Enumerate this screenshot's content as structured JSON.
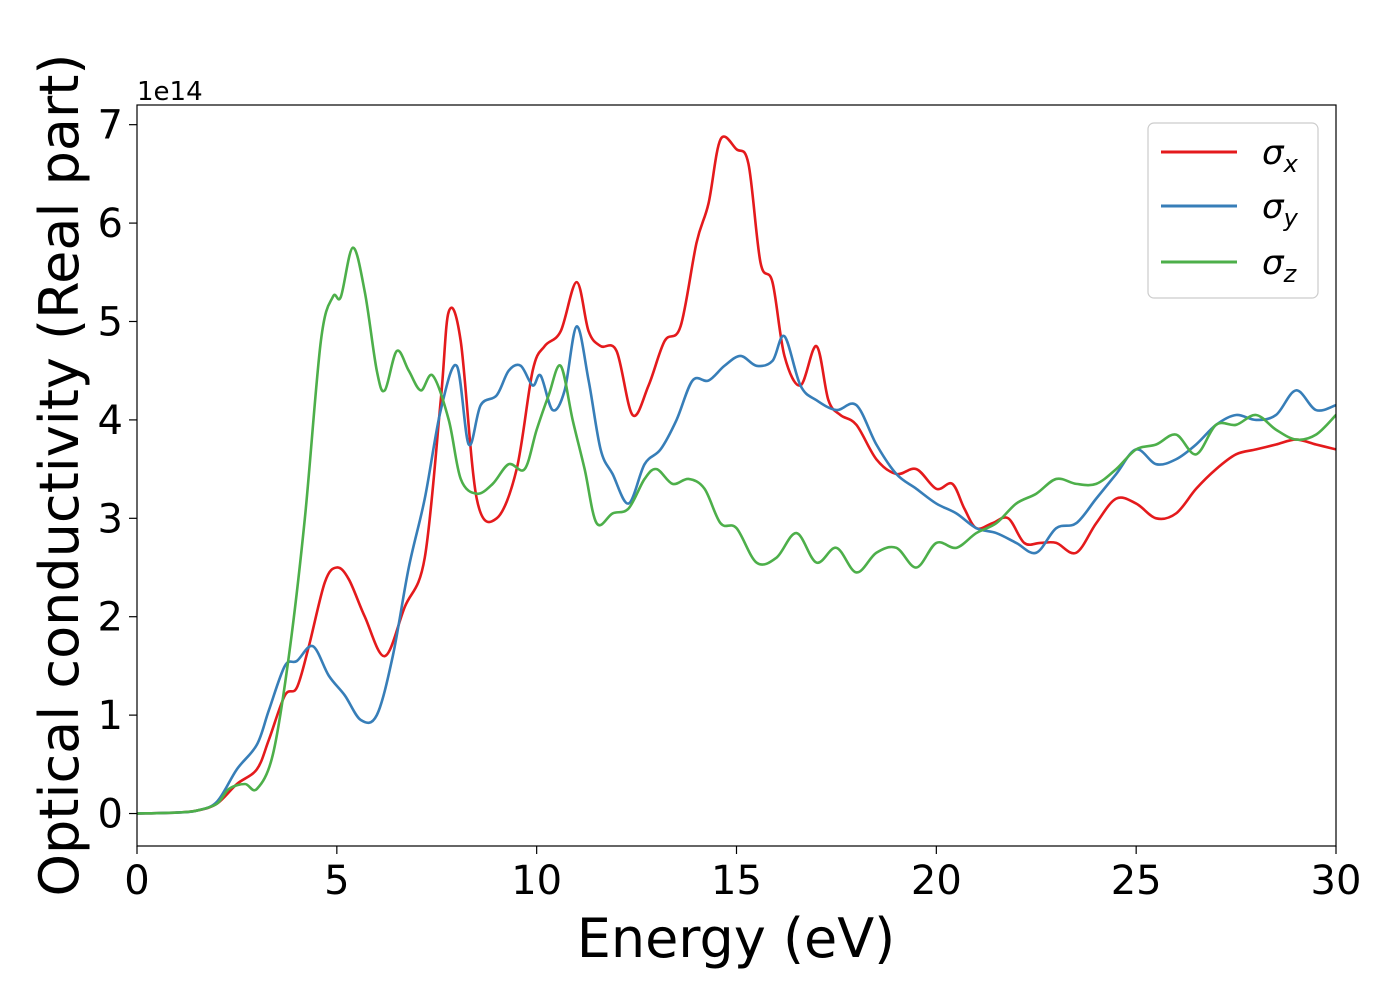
{
  "chart_data": {
    "type": "line",
    "xlabel": "Energy (eV)",
    "ylabel": "Optical conductivity (Real part)",
    "y_offset_label": "1e14",
    "y_scale": 100000000000000.0,
    "xlim": [
      0,
      30
    ],
    "ylim": [
      -0.33,
      7.2
    ],
    "xticks": [
      0,
      5,
      10,
      15,
      20,
      25,
      30
    ],
    "yticks": [
      0,
      1,
      2,
      3,
      4,
      5,
      6,
      7
    ],
    "grid": false,
    "legend_position": "top-right",
    "series": [
      {
        "name": "σx",
        "legend_symbol": "σ",
        "legend_subscript": "x",
        "color": "#e41a1c",
        "x": [
          0,
          1,
          1.5,
          2.0,
          2.5,
          3.0,
          3.3,
          3.7,
          4.0,
          4.3,
          4.7,
          5.0,
          5.3,
          5.7,
          6.2,
          6.7,
          7.2,
          7.6,
          7.8,
          8.1,
          8.5,
          9.0,
          9.5,
          9.9,
          10.2,
          10.6,
          11.0,
          11.3,
          11.6,
          12.0,
          12.4,
          12.8,
          13.2,
          13.6,
          14.0,
          14.3,
          14.6,
          15.0,
          15.3,
          15.6,
          15.9,
          16.2,
          16.6,
          17.0,
          17.3,
          17.6,
          18.0,
          18.5,
          19.0,
          19.5,
          20.0,
          20.4,
          20.7,
          21.0,
          21.4,
          21.8,
          22.2,
          22.6,
          23.0,
          23.5,
          24.0,
          24.5,
          25.0,
          25.5,
          26.0,
          26.5,
          27.0,
          27.5,
          28.0,
          28.5,
          29.0,
          29.5,
          30.0
        ],
        "y": [
          0,
          0.01,
          0.03,
          0.1,
          0.3,
          0.45,
          0.75,
          1.2,
          1.28,
          1.7,
          2.35,
          2.5,
          2.38,
          2.0,
          1.6,
          2.1,
          2.6,
          4.2,
          5.1,
          4.8,
          3.2,
          3.0,
          3.5,
          4.5,
          4.75,
          4.9,
          5.4,
          4.9,
          4.75,
          4.7,
          4.05,
          4.35,
          4.8,
          4.95,
          5.8,
          6.2,
          6.85,
          6.75,
          6.6,
          5.6,
          5.4,
          4.65,
          4.35,
          4.75,
          4.2,
          4.05,
          3.95,
          3.6,
          3.45,
          3.5,
          3.3,
          3.35,
          3.1,
          2.9,
          2.95,
          3.0,
          2.75,
          2.75,
          2.75,
          2.65,
          2.95,
          3.2,
          3.15,
          3.0,
          3.05,
          3.3,
          3.5,
          3.65,
          3.7,
          3.75,
          3.8,
          3.75,
          3.7
        ]
      },
      {
        "name": "σy",
        "legend_symbol": "σ",
        "legend_subscript": "y",
        "color": "#377eb8",
        "x": [
          0,
          1,
          1.5,
          2.0,
          2.5,
          3.0,
          3.3,
          3.7,
          4.0,
          4.4,
          4.8,
          5.2,
          5.6,
          6.0,
          6.4,
          6.8,
          7.2,
          7.6,
          8.0,
          8.3,
          8.6,
          9.0,
          9.3,
          9.6,
          9.9,
          10.1,
          10.4,
          10.7,
          11.0,
          11.3,
          11.6,
          11.9,
          12.3,
          12.7,
          13.1,
          13.5,
          13.9,
          14.3,
          14.7,
          15.1,
          15.5,
          15.9,
          16.2,
          16.6,
          17.0,
          17.5,
          18.0,
          18.5,
          19.0,
          19.5,
          20.0,
          20.5,
          21.0,
          21.5,
          22.0,
          22.5,
          23.0,
          23.5,
          24.0,
          24.5,
          25.0,
          25.5,
          26.0,
          26.5,
          27.0,
          27.5,
          28.0,
          28.5,
          29.0,
          29.5,
          30.0
        ],
        "y": [
          0,
          0.01,
          0.03,
          0.12,
          0.45,
          0.7,
          1.05,
          1.5,
          1.55,
          1.7,
          1.4,
          1.2,
          0.95,
          1.0,
          1.6,
          2.5,
          3.2,
          4.1,
          4.55,
          3.75,
          4.15,
          4.25,
          4.5,
          4.55,
          4.35,
          4.45,
          4.1,
          4.3,
          4.95,
          4.4,
          3.7,
          3.45,
          3.15,
          3.55,
          3.7,
          4.0,
          4.4,
          4.4,
          4.55,
          4.65,
          4.55,
          4.6,
          4.85,
          4.35,
          4.2,
          4.1,
          4.15,
          3.75,
          3.45,
          3.3,
          3.15,
          3.05,
          2.9,
          2.85,
          2.75,
          2.65,
          2.9,
          2.95,
          3.2,
          3.45,
          3.7,
          3.55,
          3.6,
          3.75,
          3.95,
          4.05,
          4.0,
          4.05,
          4.3,
          4.1,
          4.15
        ]
      },
      {
        "name": "σz",
        "legend_symbol": "σ",
        "legend_subscript": "z",
        "color": "#4daf4a",
        "x": [
          0,
          1,
          1.5,
          2.0,
          2.3,
          2.7,
          3.0,
          3.4,
          3.8,
          4.2,
          4.6,
          4.9,
          5.1,
          5.4,
          5.7,
          6.0,
          6.2,
          6.5,
          6.8,
          7.1,
          7.4,
          7.8,
          8.1,
          8.5,
          8.9,
          9.3,
          9.7,
          10.0,
          10.3,
          10.6,
          10.9,
          11.2,
          11.5,
          11.9,
          12.3,
          12.7,
          13.0,
          13.4,
          13.8,
          14.2,
          14.6,
          15.0,
          15.5,
          16.0,
          16.5,
          17.0,
          17.5,
          18.0,
          18.5,
          19.0,
          19.5,
          20.0,
          20.5,
          21.0,
          21.5,
          22.0,
          22.5,
          23.0,
          23.5,
          24.0,
          24.5,
          25.0,
          25.5,
          26.0,
          26.5,
          27.0,
          27.5,
          28.0,
          28.5,
          29.0,
          29.5,
          30.0
        ],
        "y": [
          0,
          0.01,
          0.03,
          0.1,
          0.25,
          0.3,
          0.25,
          0.6,
          1.6,
          3.0,
          4.8,
          5.25,
          5.25,
          5.75,
          5.3,
          4.5,
          4.3,
          4.7,
          4.5,
          4.3,
          4.45,
          4.0,
          3.4,
          3.25,
          3.35,
          3.55,
          3.5,
          3.9,
          4.25,
          4.55,
          4.0,
          3.5,
          2.95,
          3.05,
          3.1,
          3.4,
          3.5,
          3.35,
          3.4,
          3.3,
          2.95,
          2.9,
          2.55,
          2.6,
          2.85,
          2.55,
          2.7,
          2.45,
          2.65,
          2.7,
          2.5,
          2.75,
          2.7,
          2.85,
          2.95,
          3.15,
          3.25,
          3.4,
          3.35,
          3.35,
          3.5,
          3.7,
          3.75,
          3.85,
          3.65,
          3.95,
          3.95,
          4.05,
          3.9,
          3.8,
          3.85,
          4.05
        ]
      }
    ]
  }
}
